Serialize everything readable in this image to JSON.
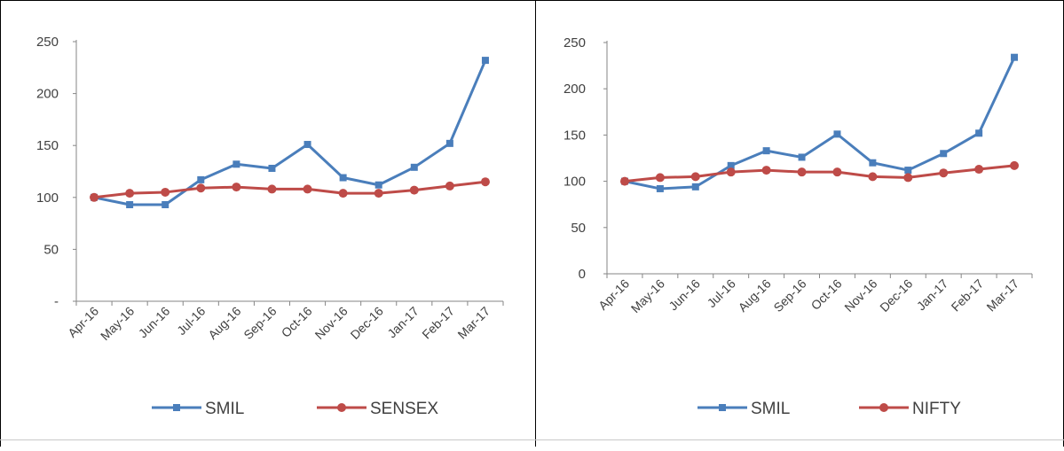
{
  "chart_data": [
    {
      "type": "line",
      "categories": [
        "Apr-16",
        "May-16",
        "Jun-16",
        "Jul-16",
        "Aug-16",
        "Sep-16",
        "Oct-16",
        "Nov-16",
        "Dec-16",
        "Jan-17",
        "Feb-17",
        "Mar-17"
      ],
      "y_ticks": [
        "-",
        "50",
        "100",
        "150",
        "200",
        "250"
      ],
      "ylim": [
        0,
        250
      ],
      "series": [
        {
          "name": "SMIL",
          "color": "#4a7ebb",
          "marker": "square",
          "values": [
            100,
            93,
            93,
            117,
            132,
            128,
            151,
            119,
            112,
            129,
            152,
            232
          ]
        },
        {
          "name": "SENSEX",
          "color": "#be4b48",
          "marker": "circle",
          "values": [
            100,
            104,
            105,
            109,
            110,
            108,
            108,
            104,
            104,
            107,
            111,
            115
          ]
        }
      ],
      "legend_position": "bottom",
      "grid": false
    },
    {
      "type": "line",
      "categories": [
        "Apr-16",
        "May-16",
        "Jun-16",
        "Jul-16",
        "Aug-16",
        "Sep-16",
        "Oct-16",
        "Nov-16",
        "Dec-16",
        "Jan-17",
        "Feb-17",
        "Mar-17"
      ],
      "y_ticks": [
        "0",
        "50",
        "100",
        "150",
        "200",
        "250"
      ],
      "ylim": [
        0,
        250
      ],
      "series": [
        {
          "name": "SMIL",
          "color": "#4a7ebb",
          "marker": "square",
          "values": [
            100,
            92,
            94,
            117,
            133,
            126,
            151,
            120,
            112,
            130,
            152,
            234
          ]
        },
        {
          "name": "NIFTY",
          "color": "#be4b48",
          "marker": "circle",
          "values": [
            100,
            104,
            105,
            110,
            112,
            110,
            110,
            105,
            104,
            109,
            113,
            117
          ]
        }
      ],
      "legend_position": "bottom",
      "grid": false
    }
  ]
}
